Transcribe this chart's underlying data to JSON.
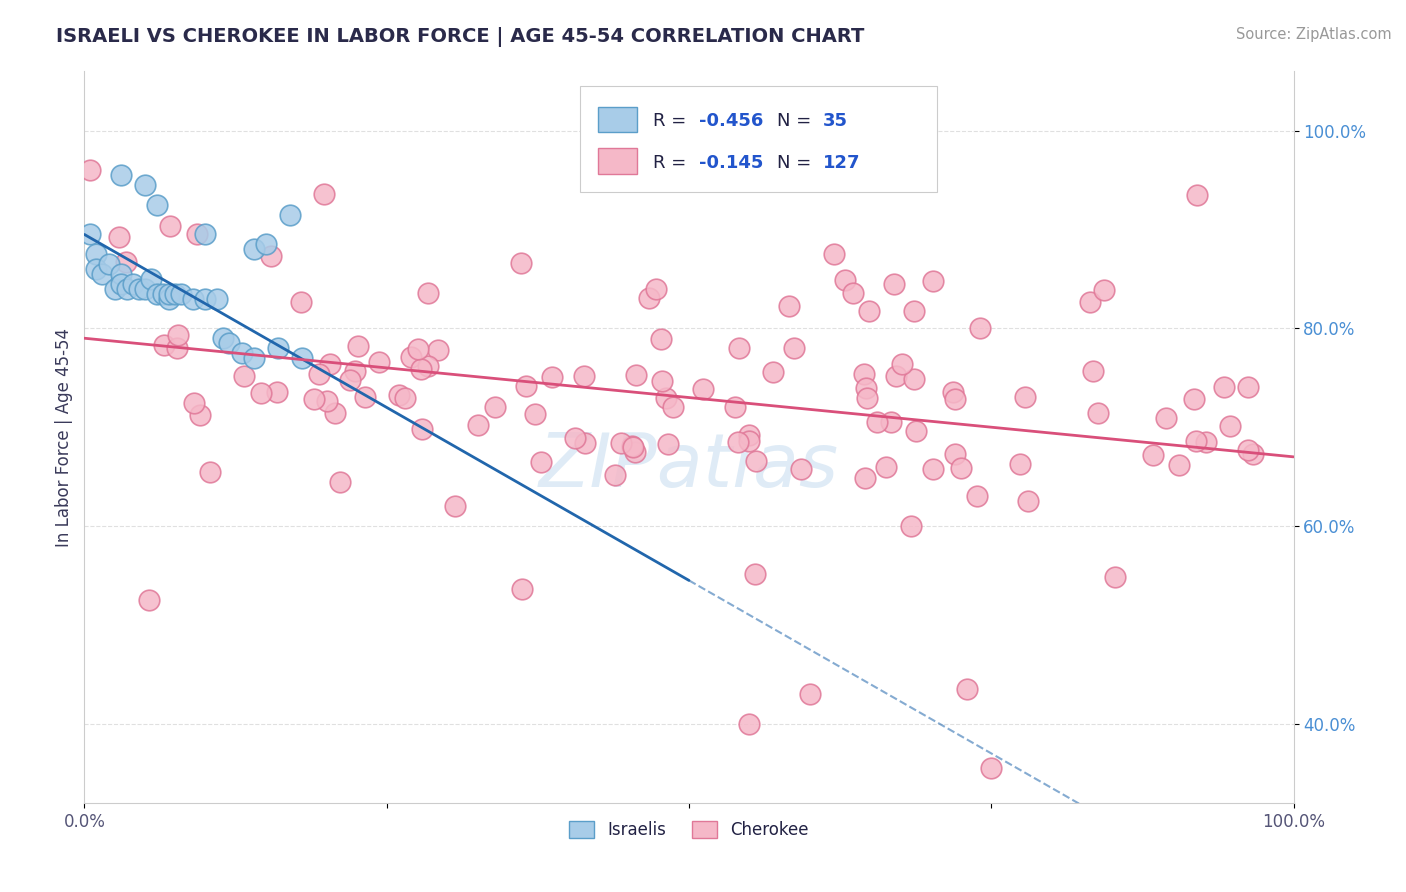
{
  "title": "ISRAELI VS CHEROKEE IN LABOR FORCE | AGE 45-54 CORRELATION CHART",
  "source_text": "Source: ZipAtlas.com",
  "ylabel": "In Labor Force | Age 45-54",
  "legend_label1": "Israelis",
  "legend_label2": "Cherokee",
  "r1": -0.456,
  "n1": 35,
  "r2": -0.145,
  "n2": 127,
  "color1_face": "#a8cce8",
  "color1_edge": "#5b9ec9",
  "color2_face": "#f5b8c8",
  "color2_edge": "#e07898",
  "trendline1_color": "#2166ac",
  "trendline2_color": "#d94f7a",
  "watermark_color": "#b8d4ec",
  "xlim": [
    0.0,
    1.0
  ],
  "ylim": [
    0.32,
    1.06
  ],
  "title_color": "#2a2a4a",
  "source_color": "#999999",
  "ylabel_color": "#3a3a5a",
  "ytick_color": "#4a8fd4",
  "xtick_color": "#555577",
  "grid_color": "#e0e0e0",
  "legend_text_color": "#222244",
  "legend_rv_color": "#2255cc"
}
